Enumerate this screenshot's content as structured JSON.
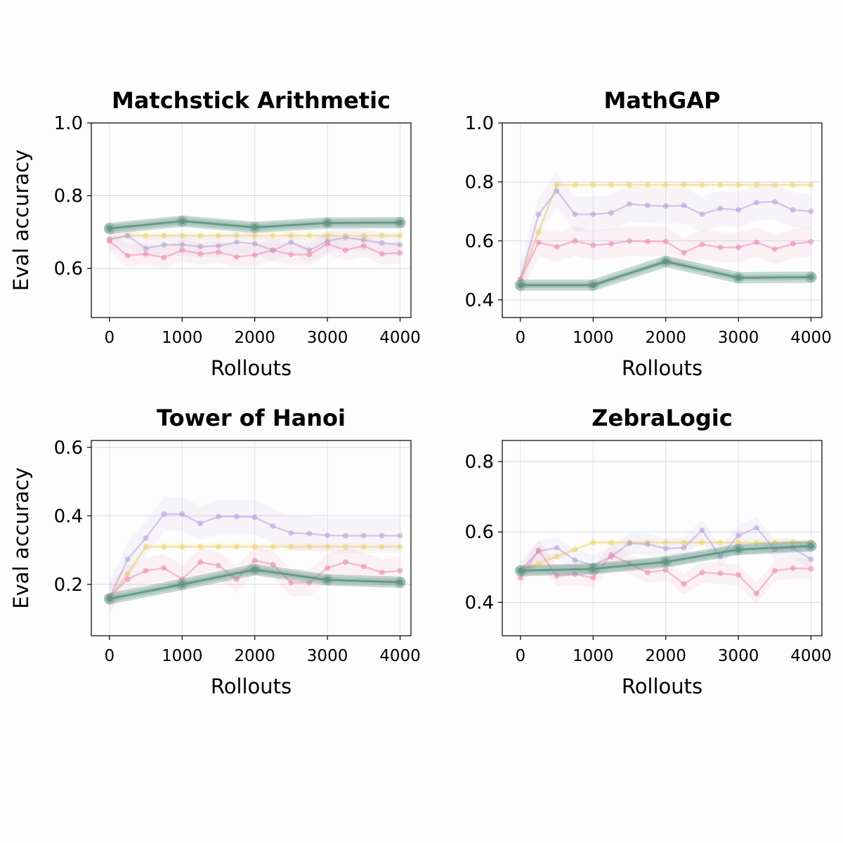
{
  "colors": {
    "green": "#5f9483",
    "yellow": "#f2d36b",
    "purple": "#b7a4dc",
    "pink": "#ec8eb4",
    "grid": "#c9cbe4",
    "axis": "#000000"
  },
  "chart_data": [
    {
      "type": "line",
      "title": "Matchstick Arithmetic",
      "xlabel": "Rollouts",
      "ylabel": "Eval accuracy",
      "xlim": [
        -250,
        4150
      ],
      "ylim": [
        0.465,
        1.0
      ],
      "xticks": [
        0,
        1000,
        2000,
        3000,
        4000
      ],
      "xtick_labels": [
        "0",
        "1000",
        "2000",
        "3000",
        "4000"
      ],
      "yticks": [
        0.6,
        0.8,
        1.0
      ],
      "ytick_labels": [
        "0.6",
        "0.8",
        "1.0"
      ],
      "grid": true,
      "series": [
        {
          "color_key": "yellow",
          "x": [
            0,
            250,
            500,
            750,
            1000,
            1250,
            1500,
            1750,
            2000,
            2250,
            2500,
            2750,
            3000,
            3250,
            3500,
            3750,
            4000
          ],
          "y": [
            0.68,
            0.69,
            0.69,
            0.69,
            0.69,
            0.69,
            0.69,
            0.69,
            0.69,
            0.69,
            0.69,
            0.69,
            0.69,
            0.69,
            0.69,
            0.69,
            0.69
          ],
          "band": 0.01
        },
        {
          "color_key": "purple",
          "x": [
            0,
            250,
            500,
            750,
            1000,
            1250,
            1500,
            1750,
            2000,
            2250,
            2500,
            2750,
            3000,
            3250,
            3500,
            3750,
            4000
          ],
          "y": [
            0.68,
            0.69,
            0.655,
            0.665,
            0.665,
            0.66,
            0.662,
            0.672,
            0.668,
            0.65,
            0.672,
            0.65,
            0.675,
            0.685,
            0.678,
            0.67,
            0.665
          ],
          "band": 0.03
        },
        {
          "color_key": "pink",
          "x": [
            0,
            250,
            500,
            750,
            1000,
            1250,
            1500,
            1750,
            2000,
            2250,
            2500,
            2750,
            3000,
            3250,
            3500,
            3750,
            4000
          ],
          "y": [
            0.675,
            0.635,
            0.64,
            0.63,
            0.65,
            0.64,
            0.645,
            0.632,
            0.637,
            0.65,
            0.638,
            0.638,
            0.668,
            0.65,
            0.662,
            0.64,
            0.643
          ],
          "band": 0.03
        },
        {
          "color_key": "green",
          "emphasis": true,
          "x": [
            0,
            1000,
            2000,
            3000,
            4000
          ],
          "y": [
            0.71,
            0.73,
            0.713,
            0.725,
            0.726
          ],
          "band": 0.01
        }
      ]
    },
    {
      "type": "line",
      "title": "MathGAP",
      "xlabel": "Rollouts",
      "ylabel": "",
      "xlim": [
        -250,
        4150
      ],
      "ylim": [
        0.34,
        1.0
      ],
      "xticks": [
        0,
        1000,
        2000,
        3000,
        4000
      ],
      "xtick_labels": [
        "0",
        "1000",
        "2000",
        "3000",
        "4000"
      ],
      "yticks": [
        0.4,
        0.6,
        0.8,
        1.0
      ],
      "ytick_labels": [
        "0.4",
        "0.6",
        "0.8",
        "1.0"
      ],
      "grid": true,
      "series": [
        {
          "color_key": "yellow",
          "x": [
            0,
            250,
            500,
            750,
            1000,
            1250,
            1500,
            1750,
            2000,
            2250,
            2500,
            2750,
            3000,
            3250,
            3500,
            3750,
            4000
          ],
          "y": [
            0.47,
            0.63,
            0.79,
            0.79,
            0.79,
            0.79,
            0.79,
            0.79,
            0.79,
            0.79,
            0.79,
            0.79,
            0.79,
            0.79,
            0.79,
            0.79,
            0.79
          ],
          "band": 0.01
        },
        {
          "color_key": "purple",
          "x": [
            0,
            250,
            500,
            750,
            1000,
            1250,
            1500,
            1750,
            2000,
            2250,
            2500,
            2750,
            3000,
            3250,
            3500,
            3750,
            4000
          ],
          "y": [
            0.47,
            0.69,
            0.77,
            0.69,
            0.69,
            0.695,
            0.725,
            0.72,
            0.718,
            0.72,
            0.69,
            0.71,
            0.705,
            0.73,
            0.733,
            0.705,
            0.7
          ],
          "band": 0.06
        },
        {
          "color_key": "pink",
          "x": [
            0,
            250,
            500,
            750,
            1000,
            1250,
            1500,
            1750,
            2000,
            2250,
            2500,
            2750,
            3000,
            3250,
            3500,
            3750,
            4000
          ],
          "y": [
            0.47,
            0.595,
            0.58,
            0.6,
            0.585,
            0.59,
            0.6,
            0.598,
            0.598,
            0.56,
            0.588,
            0.578,
            0.578,
            0.595,
            0.572,
            0.59,
            0.597
          ],
          "band": 0.05
        },
        {
          "color_key": "green",
          "emphasis": true,
          "x": [
            0,
            1000,
            2000,
            3000,
            4000
          ],
          "y": [
            0.45,
            0.45,
            0.53,
            0.475,
            0.477
          ],
          "band": 0.01
        }
      ]
    },
    {
      "type": "line",
      "title": "Tower of Hanoi",
      "xlabel": "Rollouts",
      "ylabel": "Eval accuracy",
      "xlim": [
        -250,
        4150
      ],
      "ylim": [
        0.05,
        0.62
      ],
      "xticks": [
        0,
        1000,
        2000,
        3000,
        4000
      ],
      "xtick_labels": [
        "0",
        "1000",
        "2000",
        "3000",
        "4000"
      ],
      "yticks": [
        0.2,
        0.4,
        0.6
      ],
      "ytick_labels": [
        "0.2",
        "0.4",
        "0.6"
      ],
      "grid": true,
      "series": [
        {
          "color_key": "yellow",
          "x": [
            0,
            250,
            500,
            750,
            1000,
            1250,
            1500,
            1750,
            2000,
            2250,
            2500,
            2750,
            3000,
            3250,
            3500,
            3750,
            4000
          ],
          "y": [
            0.16,
            0.23,
            0.31,
            0.31,
            0.31,
            0.31,
            0.31,
            0.31,
            0.31,
            0.31,
            0.31,
            0.31,
            0.31,
            0.31,
            0.31,
            0.31,
            0.31
          ],
          "band": 0.01
        },
        {
          "color_key": "purple",
          "x": [
            0,
            250,
            500,
            750,
            1000,
            1250,
            1500,
            1750,
            2000,
            2250,
            2500,
            2750,
            3000,
            3250,
            3500,
            3750,
            4000
          ],
          "y": [
            0.16,
            0.273,
            0.335,
            0.405,
            0.405,
            0.378,
            0.398,
            0.398,
            0.396,
            0.37,
            0.35,
            0.348,
            0.343,
            0.342,
            0.342,
            0.342,
            0.342
          ],
          "band": 0.05
        },
        {
          "color_key": "pink",
          "x": [
            0,
            250,
            500,
            750,
            1000,
            1250,
            1500,
            1750,
            2000,
            2250,
            2500,
            2750,
            3000,
            3250,
            3500,
            3750,
            4000
          ],
          "y": [
            0.165,
            0.215,
            0.24,
            0.248,
            0.215,
            0.265,
            0.255,
            0.215,
            0.27,
            0.258,
            0.205,
            0.205,
            0.248,
            0.265,
            0.252,
            0.235,
            0.24
          ],
          "band": 0.04
        },
        {
          "color_key": "green",
          "emphasis": true,
          "x": [
            0,
            1000,
            2000,
            3000,
            4000
          ],
          "y": [
            0.158,
            0.2,
            0.243,
            0.213,
            0.206
          ],
          "band": 0.01
        }
      ]
    },
    {
      "type": "line",
      "title": "ZebraLogic",
      "xlabel": "Rollouts",
      "ylabel": "",
      "xlim": [
        -250,
        4150
      ],
      "ylim": [
        0.305,
        0.86
      ],
      "xticks": [
        0,
        1000,
        2000,
        3000,
        4000
      ],
      "xtick_labels": [
        "0",
        "1000",
        "2000",
        "3000",
        "4000"
      ],
      "yticks": [
        0.4,
        0.6,
        0.8
      ],
      "ytick_labels": [
        "0.4",
        "0.6",
        "0.8"
      ],
      "grid": true,
      "series": [
        {
          "color_key": "yellow",
          "x": [
            0,
            250,
            500,
            750,
            1000,
            1250,
            1500,
            1750,
            2000,
            2250,
            2500,
            2750,
            3000,
            3250,
            3500,
            3750,
            4000
          ],
          "y": [
            0.49,
            0.51,
            0.53,
            0.55,
            0.57,
            0.57,
            0.57,
            0.57,
            0.57,
            0.57,
            0.57,
            0.57,
            0.57,
            0.57,
            0.57,
            0.57,
            0.57
          ],
          "band": 0.01
        },
        {
          "color_key": "purple",
          "x": [
            0,
            250,
            500,
            750,
            1000,
            1250,
            1500,
            1750,
            2000,
            2250,
            2500,
            2750,
            3000,
            3250,
            3500,
            3750,
            4000
          ],
          "y": [
            0.49,
            0.545,
            0.555,
            0.52,
            0.505,
            0.53,
            0.568,
            0.565,
            0.553,
            0.555,
            0.605,
            0.53,
            0.59,
            0.612,
            0.55,
            0.555,
            0.522
          ],
          "band": 0.03
        },
        {
          "color_key": "pink",
          "x": [
            0,
            250,
            500,
            750,
            1000,
            1250,
            1500,
            1750,
            2000,
            2250,
            2500,
            2750,
            3000,
            3250,
            3500,
            3750,
            4000
          ],
          "y": [
            0.47,
            0.548,
            0.475,
            0.48,
            0.47,
            0.535,
            0.51,
            0.485,
            0.492,
            0.452,
            0.485,
            0.482,
            0.478,
            0.425,
            0.49,
            0.497,
            0.495
          ],
          "band": 0.03
        },
        {
          "color_key": "green",
          "emphasis": true,
          "x": [
            0,
            1000,
            2000,
            3000,
            4000
          ],
          "y": [
            0.49,
            0.495,
            0.515,
            0.55,
            0.56
          ],
          "band": 0.012
        }
      ]
    }
  ]
}
